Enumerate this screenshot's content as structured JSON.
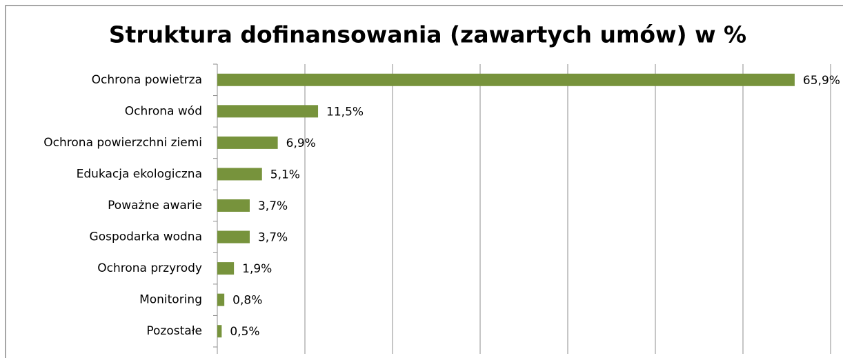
{
  "chart_data": {
    "type": "bar",
    "orientation": "horizontal",
    "title": "Struktura dofinansowania (zawartych umów) w %",
    "categories": [
      "Ochrona powietrza",
      "Ochrona wód",
      "Ochrona powierzchni ziemi",
      "Edukacja ekologiczna",
      "Poważne awarie",
      "Gospodarka wodna",
      "Ochrona przyrody",
      "Monitoring",
      "Pozostałe"
    ],
    "values": [
      65.9,
      11.5,
      6.9,
      5.1,
      3.7,
      3.7,
      1.9,
      0.8,
      0.5
    ],
    "value_labels": [
      "65,9%",
      "11,5%",
      "6,9%",
      "5,1%",
      "3,7%",
      "3,7%",
      "1,9%",
      "0,8%",
      "0,5%"
    ],
    "color": "#77933c",
    "xlim": [
      0,
      70
    ],
    "xticks": [
      0,
      10,
      20,
      30,
      40,
      50,
      60,
      70
    ],
    "grid": true
  }
}
